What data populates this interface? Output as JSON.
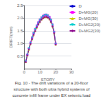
{
  "chart_data": {
    "type": "line",
    "xlabel": "STORY",
    "ylabel": "DRIFT(mm)",
    "caption": [
      "Fig. 10 - The drift variations of a 20-floor",
      "structure with both ultra hybrid systems of",
      "concrete infill frame under EX seismic load"
    ],
    "x": [
      1,
      2,
      3,
      4,
      5,
      6,
      7,
      8,
      9,
      10,
      11,
      12,
      13,
      14,
      15,
      16,
      17,
      18,
      19,
      20
    ],
    "xlim": [
      0,
      30
    ],
    "xticks": [
      0,
      10,
      20,
      30
    ],
    "ylim": [
      0,
      2.5
    ],
    "yticks": [
      0.5,
      {
        "value": 1.0,
        "label": "1.0"
      },
      1.5,
      {
        "value": 2.0,
        "label": "2.0"
      },
      2.5
    ],
    "grid": true,
    "legend": "right",
    "series": [
      {
        "name": "D",
        "color": "#0000cc",
        "marker": "circle",
        "values": [
          0.28,
          0.55,
          0.8,
          1.02,
          1.22,
          1.4,
          1.56,
          1.7,
          1.82,
          1.93,
          2.02,
          2.08,
          2.12,
          2.13,
          2.1,
          2.04,
          1.92,
          1.73,
          1.45,
          0.98
        ]
      },
      {
        "name": "D+MG(20)",
        "color": "#ff00ff",
        "marker": "square",
        "values": [
          0.28,
          0.55,
          0.8,
          1.03,
          1.23,
          1.41,
          1.57,
          1.71,
          1.83,
          1.94,
          2.03,
          2.09,
          2.13,
          2.14,
          2.11,
          2.05,
          1.93,
          1.74,
          1.46,
          0.99
        ]
      },
      {
        "name": "D+MG(30)",
        "color": "#cccc00",
        "marker": "triangle",
        "values": [
          0.26,
          0.52,
          0.76,
          0.98,
          1.17,
          1.34,
          1.49,
          1.63,
          1.75,
          1.85,
          1.94,
          2.0,
          2.04,
          2.05,
          2.02,
          1.96,
          1.85,
          1.67,
          1.4,
          0.95
        ]
      },
      {
        "name": "D+MG2(20)",
        "color": "#00cccc",
        "marker": "triangle-down",
        "values": [
          0.28,
          0.55,
          0.8,
          1.02,
          1.22,
          1.4,
          1.56,
          1.7,
          1.82,
          1.93,
          2.02,
          2.08,
          2.12,
          2.13,
          2.1,
          2.04,
          1.92,
          1.73,
          1.45,
          0.98
        ]
      },
      {
        "name": "D+MG2(30)",
        "color": "#880088",
        "marker": "diamond",
        "values": [
          0.26,
          0.52,
          0.76,
          0.98,
          1.17,
          1.34,
          1.49,
          1.63,
          1.75,
          1.85,
          1.94,
          2.0,
          2.04,
          2.05,
          2.02,
          1.96,
          1.85,
          1.67,
          1.4,
          0.95
        ]
      }
    ]
  }
}
